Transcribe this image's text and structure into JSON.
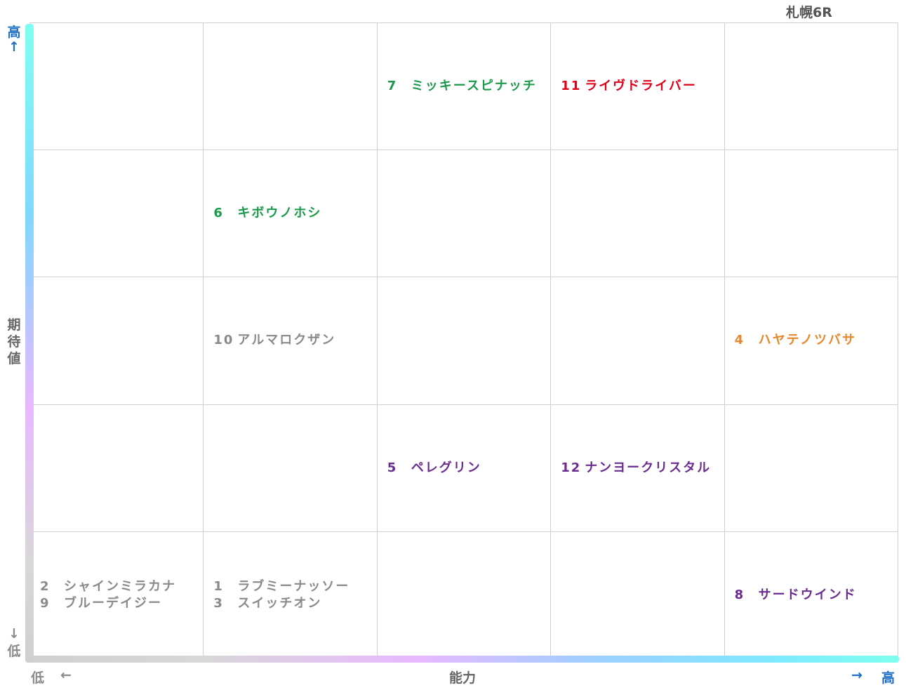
{
  "title": "札幌6R",
  "y_axis": {
    "label": [
      "期",
      "待",
      "値"
    ],
    "high": "高",
    "high_arrow": "↑",
    "low_arrow": "↓",
    "low": "低"
  },
  "x_axis": {
    "label": "能力",
    "low": "低",
    "low_arrow": "←",
    "high_arrow": "→",
    "high": "高"
  },
  "colors": {
    "green": "#1a9a4a",
    "red": "#e0001a",
    "gray": "#8a8a8a",
    "orange": "#e8862a",
    "purple": "#6a2c8e",
    "axis_blue": "#1f6fc5"
  },
  "chart_data": {
    "type": "table",
    "grid": {
      "columns": 5,
      "rows": 5
    },
    "horses": [
      {
        "num": "7",
        "name": "ミッキースピナッチ",
        "ability_col": 3,
        "expect_row": 5,
        "color": "green"
      },
      {
        "num": "11",
        "name": "ライヴドライバー",
        "ability_col": 4,
        "expect_row": 5,
        "color": "red"
      },
      {
        "num": "6",
        "name": "キボウノホシ",
        "ability_col": 2,
        "expect_row": 4,
        "color": "green"
      },
      {
        "num": "10",
        "name": "アルマロクザン",
        "ability_col": 2,
        "expect_row": 3,
        "color": "gray"
      },
      {
        "num": "4",
        "name": "ハヤテノツバサ",
        "ability_col": 5,
        "expect_row": 3,
        "color": "orange"
      },
      {
        "num": "5",
        "name": "ペレグリン",
        "ability_col": 3,
        "expect_row": 2,
        "color": "purple"
      },
      {
        "num": "12",
        "name": "ナンヨークリスタル",
        "ability_col": 4,
        "expect_row": 2,
        "color": "purple"
      },
      {
        "num": "2",
        "name": "シャインミラカナ",
        "ability_col": 1,
        "expect_row": 1,
        "color": "gray"
      },
      {
        "num": "9",
        "name": "ブルーデイジー",
        "ability_col": 1,
        "expect_row": 1,
        "color": "gray"
      },
      {
        "num": "1",
        "name": "ラブミーナッソー",
        "ability_col": 2,
        "expect_row": 1,
        "color": "gray"
      },
      {
        "num": "3",
        "name": "スイッチオン",
        "ability_col": 2,
        "expect_row": 1,
        "color": "gray"
      },
      {
        "num": "8",
        "name": "サードウインド",
        "ability_col": 5,
        "expect_row": 1,
        "color": "purple"
      }
    ]
  }
}
